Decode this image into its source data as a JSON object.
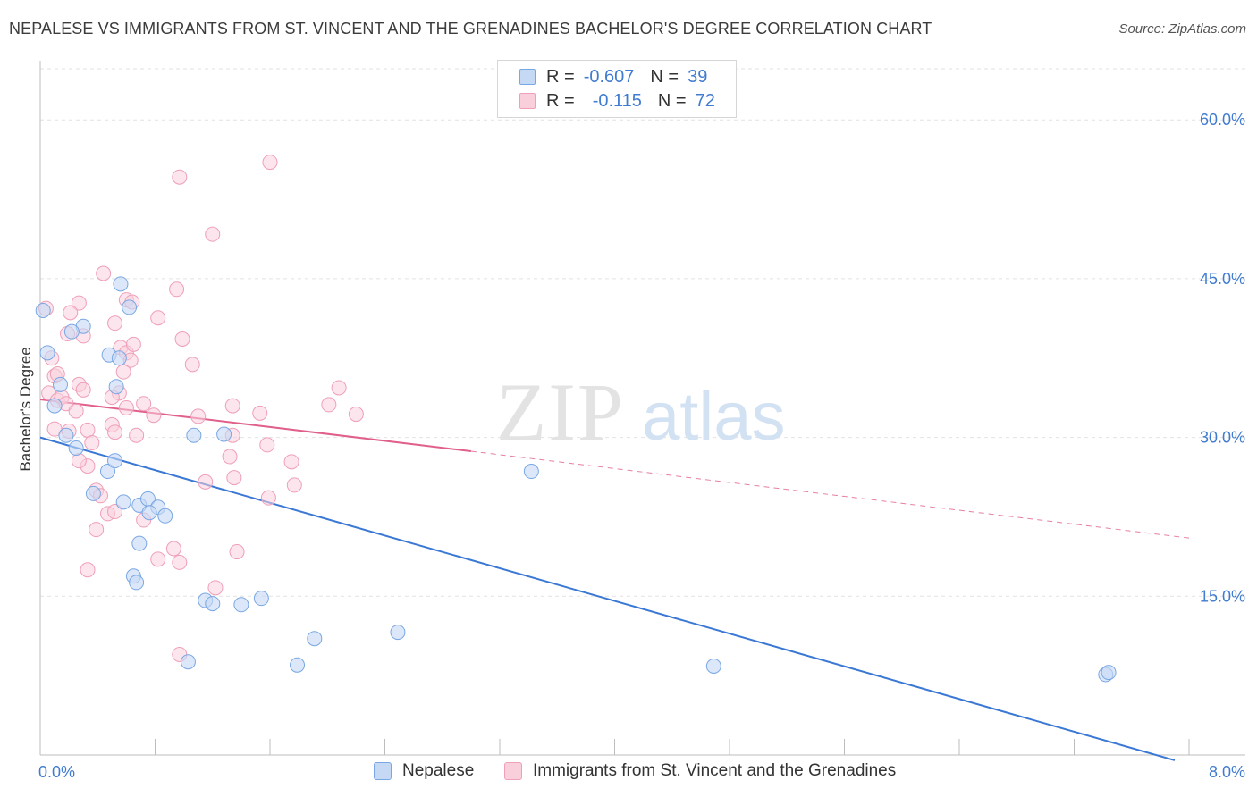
{
  "header": {
    "title": "NEPALESE VS IMMIGRANTS FROM ST. VINCENT AND THE GRENADINES BACHELOR'S DEGREE CORRELATION CHART",
    "source": "Source: ZipAtlas.com"
  },
  "watermark": {
    "zip": "ZIP",
    "atlas": "atlas"
  },
  "legend": {
    "rows": [
      {
        "r_label": "R =",
        "r_value": "-0.607",
        "n_label": "N =",
        "n_value": "39"
      },
      {
        "r_label": "R =",
        "r_value": "-0.115",
        "n_label": "N =",
        "n_value": "72"
      }
    ]
  },
  "bottom_legend": {
    "series_a": "Nepalese",
    "series_b": "Immigrants from St. Vincent and the Grenadines"
  },
  "colors": {
    "blue_fill": "#c5d9f5",
    "blue_stroke": "#7aa7e3",
    "blue_line": "#3a78d4",
    "pink_fill": "#f9cfdc",
    "pink_stroke": "#ef9fb8",
    "pink_line": "#e0608a",
    "tick_text": "#3f7bd0"
  },
  "chart_data": {
    "type": "scatter",
    "title": "NEPALESE VS IMMIGRANTS FROM ST. VINCENT AND THE GRENADINES BACHELOR'S DEGREE CORRELATION CHART",
    "xlabel": "",
    "ylabel": "Bachelor's Degree",
    "xlim": [
      0,
      8
    ],
    "ylim": [
      0,
      65
    ],
    "x_tick_labels": [
      "0.0%",
      "8.0%"
    ],
    "y_ticks": [
      15,
      30,
      45,
      60
    ],
    "y_tick_labels": [
      "15.0%",
      "30.0%",
      "45.0%",
      "60.0%"
    ],
    "grid": true,
    "series": [
      {
        "name": "Nepalese",
        "r": -0.607,
        "n": 39,
        "trend": {
          "x0": 0.0,
          "y0": 30.0,
          "x1": 7.9,
          "y1": -0.5,
          "dashed_to": null
        },
        "points": [
          [
            0.02,
            42.0
          ],
          [
            0.05,
            38.0
          ],
          [
            0.1,
            33.0
          ],
          [
            0.14,
            35.0
          ],
          [
            0.18,
            30.2
          ],
          [
            0.25,
            29.0
          ],
          [
            0.3,
            40.5
          ],
          [
            0.22,
            40.0
          ],
          [
            0.37,
            24.7
          ],
          [
            0.48,
            37.8
          ],
          [
            0.55,
            37.5
          ],
          [
            0.53,
            34.8
          ],
          [
            0.47,
            26.8
          ],
          [
            0.52,
            27.8
          ],
          [
            0.56,
            44.5
          ],
          [
            0.62,
            42.3
          ],
          [
            0.58,
            23.9
          ],
          [
            0.69,
            23.6
          ],
          [
            0.75,
            24.2
          ],
          [
            0.82,
            23.4
          ],
          [
            0.76,
            22.9
          ],
          [
            0.87,
            22.6
          ],
          [
            0.69,
            20.0
          ],
          [
            0.65,
            16.9
          ],
          [
            0.67,
            16.3
          ],
          [
            1.07,
            30.2
          ],
          [
            1.28,
            30.3
          ],
          [
            1.15,
            14.6
          ],
          [
            1.2,
            14.3
          ],
          [
            1.4,
            14.2
          ],
          [
            1.54,
            14.8
          ],
          [
            1.03,
            8.8
          ],
          [
            1.79,
            8.5
          ],
          [
            1.91,
            11.0
          ],
          [
            2.49,
            11.6
          ],
          [
            3.42,
            26.8
          ],
          [
            4.69,
            8.4
          ],
          [
            7.42,
            7.6
          ],
          [
            7.44,
            7.8
          ]
        ]
      },
      {
        "name": "Immigrants from St. Vincent and the Grenadines",
        "r": -0.115,
        "n": 72,
        "trend": {
          "x0": 0.0,
          "y0": 33.6,
          "x1": 3.0,
          "y1": 28.7,
          "dashed_x1": 8.0,
          "dashed_y1": 20.5
        },
        "points": [
          [
            0.04,
            42.2
          ],
          [
            0.1,
            35.8
          ],
          [
            0.06,
            34.2
          ],
          [
            0.12,
            33.5
          ],
          [
            0.15,
            33.8
          ],
          [
            0.1,
            30.8
          ],
          [
            0.2,
            30.6
          ],
          [
            0.27,
            42.7
          ],
          [
            0.21,
            41.8
          ],
          [
            0.19,
            39.8
          ],
          [
            0.3,
            39.6
          ],
          [
            0.27,
            35.0
          ],
          [
            0.3,
            34.5
          ],
          [
            0.33,
            30.7
          ],
          [
            0.36,
            29.5
          ],
          [
            0.33,
            27.3
          ],
          [
            0.39,
            25.0
          ],
          [
            0.42,
            24.5
          ],
          [
            0.39,
            21.3
          ],
          [
            0.33,
            17.5
          ],
          [
            0.27,
            27.8
          ],
          [
            0.44,
            45.5
          ],
          [
            0.52,
            40.8
          ],
          [
            0.55,
            34.2
          ],
          [
            0.5,
            33.8
          ],
          [
            0.6,
            32.8
          ],
          [
            0.5,
            31.2
          ],
          [
            0.52,
            30.5
          ],
          [
            0.47,
            22.8
          ],
          [
            0.52,
            23.0
          ],
          [
            0.6,
            43.0
          ],
          [
            0.64,
            42.8
          ],
          [
            0.56,
            38.5
          ],
          [
            0.6,
            38.0
          ],
          [
            0.63,
            37.3
          ],
          [
            0.58,
            36.2
          ],
          [
            0.65,
            38.8
          ],
          [
            0.72,
            33.2
          ],
          [
            0.79,
            32.1
          ],
          [
            0.67,
            30.2
          ],
          [
            0.72,
            22.2
          ],
          [
            0.82,
            18.5
          ],
          [
            0.93,
            19.5
          ],
          [
            0.97,
            18.2
          ],
          [
            0.82,
            41.3
          ],
          [
            0.95,
            44.0
          ],
          [
            0.99,
            39.3
          ],
          [
            1.06,
            36.9
          ],
          [
            1.1,
            32.0
          ],
          [
            1.15,
            25.8
          ],
          [
            0.97,
            54.6
          ],
          [
            1.2,
            49.2
          ],
          [
            1.34,
            33.0
          ],
          [
            1.34,
            30.2
          ],
          [
            1.32,
            28.2
          ],
          [
            1.35,
            26.2
          ],
          [
            1.37,
            19.2
          ],
          [
            1.22,
            15.8
          ],
          [
            0.97,
            9.5
          ],
          [
            1.53,
            32.3
          ],
          [
            1.58,
            29.3
          ],
          [
            1.59,
            24.3
          ],
          [
            1.75,
            27.7
          ],
          [
            1.77,
            25.5
          ],
          [
            1.6,
            56.0
          ],
          [
            2.08,
            34.7
          ],
          [
            2.01,
            33.1
          ],
          [
            2.2,
            32.2
          ],
          [
            0.08,
            37.5
          ],
          [
            0.12,
            36.0
          ],
          [
            0.18,
            33.2
          ],
          [
            0.25,
            32.5
          ]
        ]
      }
    ]
  }
}
